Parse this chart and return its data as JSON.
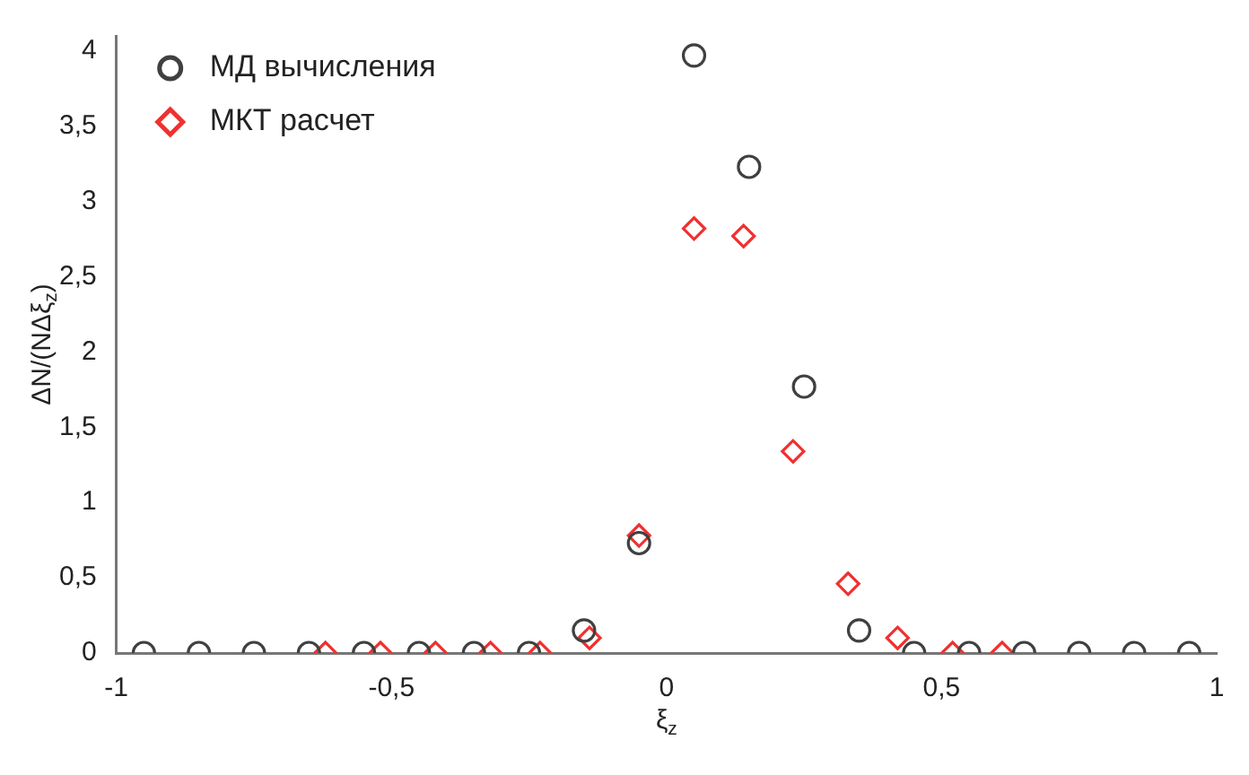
{
  "chart_data": {
    "type": "scatter",
    "xlabel": "ξ$_{z}$",
    "ylabel": "ΔN/(NΔξ$_{z}$)",
    "xlim": [
      -1,
      1
    ],
    "xticks": [
      -1,
      {
        "value": -0.5,
        "label": "-0,5"
      },
      0,
      {
        "value": 0.5,
        "label": "0,5"
      },
      1
    ],
    "ylim": [
      0,
      4.1
    ],
    "yticks": [
      0,
      {
        "value": 0.5,
        "label": "0,5"
      },
      1,
      {
        "value": 1.5,
        "label": "1,5"
      },
      2,
      {
        "value": 2.5,
        "label": "2,5"
      },
      3,
      {
        "value": 3.5,
        "label": "3,5"
      },
      4
    ],
    "grid": false,
    "legend": "top left",
    "series": [
      {
        "name": "МД вычисления",
        "color": "#404040",
        "marker": "circle",
        "x": [
          -0.95,
          -0.85,
          -0.75,
          -0.65,
          -0.55,
          -0.45,
          -0.35,
          -0.25,
          -0.15,
          -0.05,
          0.05,
          0.15,
          0.25,
          0.35,
          0.45,
          0.55,
          0.65,
          0.75,
          0.85,
          0.95
        ],
        "values": [
          0,
          0,
          0,
          0,
          0,
          0,
          0,
          0,
          0.15,
          0.73,
          3.97,
          3.23,
          1.77,
          0.15,
          0,
          0,
          0,
          0,
          0,
          0
        ]
      },
      {
        "name": "МКТ расчет",
        "color": "#f03030",
        "marker": "diamond",
        "x": [
          -0.62,
          -0.52,
          -0.42,
          -0.32,
          -0.23,
          -0.14,
          -0.05,
          0.05,
          0.14,
          0.23,
          0.33,
          0.42,
          0.52,
          0.61
        ],
        "values": [
          0,
          0,
          0,
          0,
          0,
          0.1,
          0.78,
          2.82,
          2.77,
          1.34,
          0.46,
          0.1,
          0,
          0
        ]
      }
    ]
  }
}
